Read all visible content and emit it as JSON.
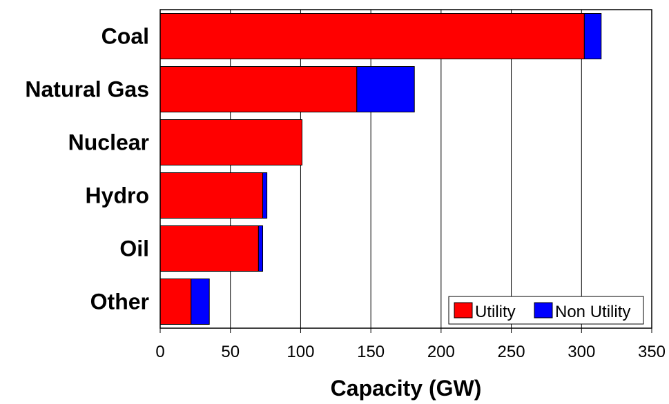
{
  "chart_data": {
    "type": "bar",
    "orientation": "horizontal",
    "stacked": true,
    "categories": [
      "Coal",
      "Natural Gas",
      "Nuclear",
      "Hydro",
      "Oil",
      "Other"
    ],
    "series": [
      {
        "name": "Utility",
        "color": "#ff0000",
        "values": [
          302,
          140,
          101,
          73,
          70,
          22
        ]
      },
      {
        "name": "Non Utility",
        "color": "#0000ff",
        "values": [
          12,
          41,
          0,
          3,
          3,
          13
        ]
      }
    ],
    "xlabel": "Capacity (GW)",
    "ylabel": "",
    "xlim": [
      0,
      350
    ],
    "xticks": [
      "0",
      "50",
      "100",
      "150",
      "200",
      "250",
      "300",
      "350"
    ],
    "grid": "vertical",
    "legend_position": "bottom-right"
  }
}
